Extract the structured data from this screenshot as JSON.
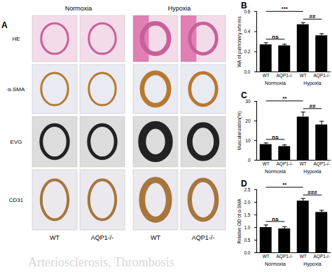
{
  "image_panel": {
    "title": "A",
    "column_headers": [
      "Normoxia",
      "Hypoxia"
    ],
    "row_labels": [
      "HE",
      "α-SMA",
      "EVG",
      "CD31"
    ],
    "column_labels": [
      "WT",
      "AQP1-/-",
      "WT",
      "AQP1-/-"
    ]
  },
  "watermark": "Arteriosclerosis, Thrombosis",
  "chart_data": [
    {
      "type": "bar",
      "title": "B",
      "y_label": "WA of pulmonary arteries",
      "categories": [
        "WT",
        "AQP1-/-",
        "WT",
        "AQP1-/-"
      ],
      "values": [
        0.27,
        0.26,
        0.47,
        0.36
      ],
      "errors": [
        0.02,
        0.015,
        0.02,
        0.02
      ],
      "color": "#000000",
      "ylim": [
        0,
        0.6
      ],
      "yticks": [
        {
          "value": 0,
          "label": "0.0"
        },
        {
          "value": 0.2,
          "label": "0.2"
        },
        {
          "value": 0.4,
          "label": "0.4"
        },
        {
          "value": 0.6,
          "label": "0.6"
        }
      ],
      "groups": [
        {
          "label": "Normoxia",
          "from": 0,
          "to": 1
        },
        {
          "label": "Hypoxia",
          "from": 2,
          "to": 3
        }
      ],
      "annotations": [
        {
          "text": "ns",
          "from": 0,
          "to": 1
        },
        {
          "text": "***",
          "from": 0,
          "to": 2
        },
        {
          "text": "##",
          "from": 2,
          "to": 3
        }
      ]
    },
    {
      "type": "bar",
      "title": "C",
      "y_label": "Muscularization(%)",
      "categories": [
        "WT",
        "AQP1-/-",
        "WT",
        "AQP1-/-"
      ],
      "values": [
        8,
        7,
        22,
        18
      ],
      "errors": [
        0.8,
        0.8,
        2.5,
        1.8
      ],
      "color": "#000000",
      "ylim": [
        0,
        30
      ],
      "yticks": [
        0,
        10,
        20,
        30
      ],
      "groups": [
        {
          "label": "Normoxia",
          "from": 0,
          "to": 1
        },
        {
          "label": "Hypoxia",
          "from": 2,
          "to": 3
        }
      ],
      "annotations": [
        {
          "text": "ns",
          "from": 0,
          "to": 1
        },
        {
          "text": "**",
          "from": 0,
          "to": 2
        },
        {
          "text": "##",
          "from": 2,
          "to": 3
        }
      ]
    },
    {
      "type": "bar",
      "title": "D",
      "y_label": "Relative OD of α-SMA",
      "categories": [
        "WT",
        "AQP1-/-",
        "WT",
        "AQP1-/-"
      ],
      "values": [
        1.0,
        0.95,
        2.05,
        1.6
      ],
      "errors": [
        0.1,
        0.08,
        0.1,
        0.08
      ],
      "color": "#000000",
      "ylim": [
        0,
        2.5
      ],
      "yticks": [
        {
          "value": 0,
          "label": "0.0"
        },
        {
          "value": 0.5,
          "label": "0.5"
        },
        {
          "value": 1,
          "label": "1.0"
        },
        {
          "value": 1.5,
          "label": "1.5"
        },
        {
          "value": 2,
          "label": "2.0"
        },
        {
          "value": 2.5,
          "label": "2.5"
        }
      ],
      "groups": [
        {
          "label": "Normoxia",
          "from": 0,
          "to": 1
        },
        {
          "label": "Hypoxia",
          "from": 2,
          "to": 3
        }
      ],
      "annotations": [
        {
          "text": "ns",
          "from": 0,
          "to": 1
        },
        {
          "text": "**",
          "from": 0,
          "to": 2
        },
        {
          "text": "###",
          "from": 2,
          "to": 3
        }
      ]
    }
  ]
}
